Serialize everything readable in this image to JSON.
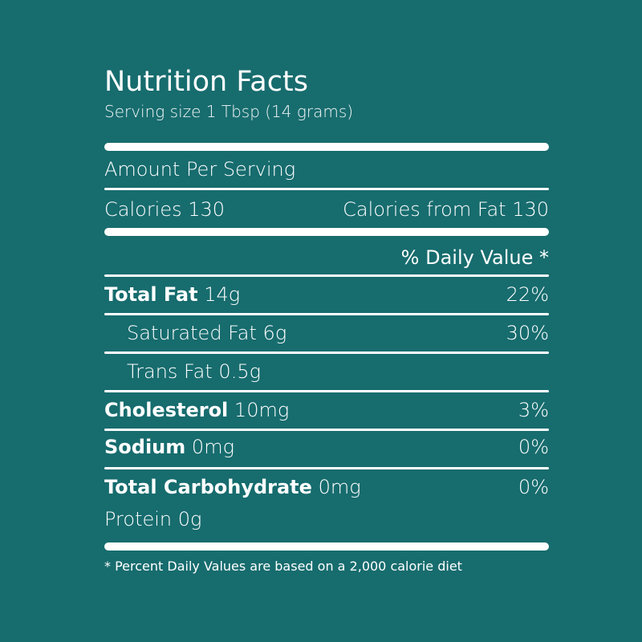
{
  "label": {
    "title": "Nutrition Facts",
    "serving_size": "Serving size 1 Tbsp (14 grams)",
    "amount_per_serving": "Amount Per Serving",
    "calories": "Calories 130",
    "calories_from_fat": "Calories from Fat 130",
    "dv_header": "% Daily Value *",
    "nutrients": [
      {
        "name": "Total Fat",
        "amount": "14g",
        "dv": "22%"
      },
      {
        "name": "Saturated Fat",
        "amount": "6g",
        "dv": "30%"
      },
      {
        "name": "Trans Fat",
        "amount": "0.5g",
        "dv": ""
      },
      {
        "name": "Cholesterol",
        "amount": "10mg",
        "dv": "3%"
      },
      {
        "name": "Sodium",
        "amount": "0mg",
        "dv": "0%"
      },
      {
        "name": "Total Carbohydrate",
        "amount": "0mg",
        "dv": "0%"
      },
      {
        "name": "Protein",
        "amount": "0g",
        "dv": ""
      }
    ],
    "footnote": "* Percent Daily Values are based on a 2,000 calorie diet"
  },
  "colors": {
    "background": "#176c6e",
    "text": "#ffffff"
  }
}
